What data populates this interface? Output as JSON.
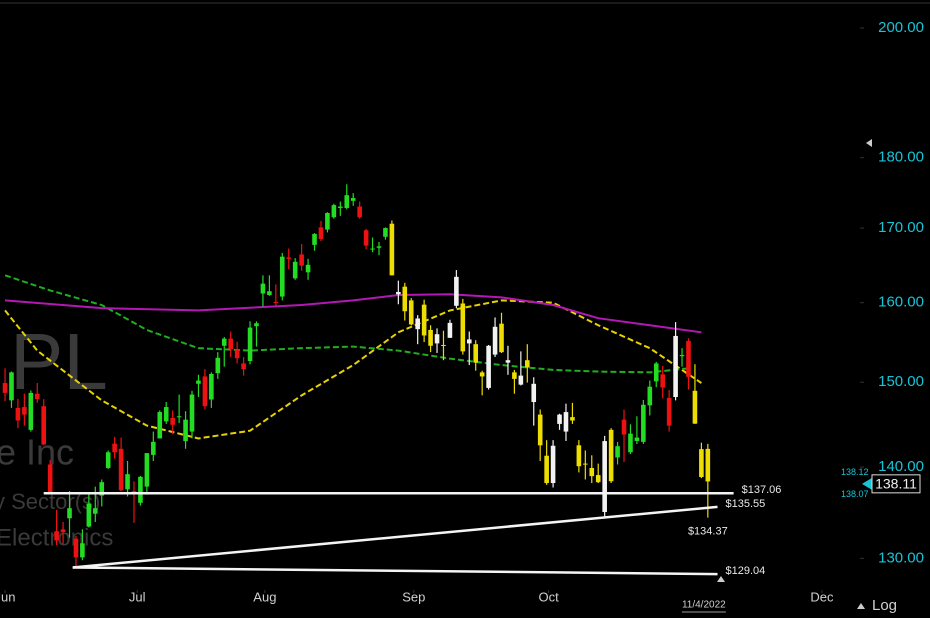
{
  "chart_data": {
    "type": "candlestick",
    "scale": "log",
    "grid": false,
    "watermark": [
      "PL",
      "e Inc",
      "y Sector(s)",
      "Electronics"
    ],
    "xlim": [
      -0.78,
      132.6
    ],
    "xticks": [
      {
        "value": 0,
        "label": "Jun"
      },
      {
        "value": 20.5,
        "label": "Jul"
      },
      {
        "value": 40.3,
        "label": "Aug"
      },
      {
        "value": 63.4,
        "label": "Sep"
      },
      {
        "value": 84.3,
        "label": "Oct"
      },
      {
        "value": 126.7,
        "label": "Dec"
      }
    ],
    "date_marker": {
      "value": 109,
      "label": "11/4/2022"
    },
    "ylim": [
      126.7,
      204.6
    ],
    "yticks": [
      {
        "value": 130,
        "label": "130.00"
      },
      {
        "value": 140,
        "label": "140.00"
      },
      {
        "value": 150,
        "label": "150.00"
      },
      {
        "value": 160,
        "label": "160.00"
      },
      {
        "value": 170,
        "label": "170.00"
      },
      {
        "value": 180,
        "label": "180.00"
      },
      {
        "value": 200,
        "label": "200.00"
      }
    ],
    "scale_label": "Log",
    "last_price": 138.11,
    "ask": 138.12,
    "bid": 138.07,
    "candles": {
      "open": [
        149.9,
        147.8,
        146.9,
        147.0,
        144.3,
        148.6,
        147.1,
        140.3,
        132.9,
        133.1,
        134.3,
        132.1,
        130.1,
        133.4,
        134.8,
        136.8,
        139.9,
        142.7,
        142.1,
        137.5,
        137.3,
        136.0,
        137.8,
        141.4,
        143.3,
        145.3,
        145.7,
        145.8,
        142.99,
        144.1,
        149.8,
        150.7,
        147.9,
        151.1,
        154.5,
        155.4,
        154.0,
        152.3,
        152.6,
        156.98,
        161.2,
        161.0,
        160.1,
        160.8,
        166.0,
        163.2,
        166.4,
        164.0,
        167.7,
        170.1,
        169.8,
        171.5,
        172.8,
        172.8,
        173.8,
        173.0,
        169.7,
        167.1,
        167.3,
        168.8,
        170.6,
        161.1,
        162.1,
        160.3,
        156.6,
        159.75,
        156.5,
        154.8,
        154.6,
        155.5,
        159.6,
        159.9,
        154.8,
        154.7,
        151.2,
        149.3,
        153.4,
        157.3,
        152.4,
        151.2,
        149.7,
        152.7,
        147.6,
        146.1,
        141.3,
        138.2,
        145.0,
        144.1,
        145.8,
        142.5,
        140.4,
        139.9,
        139.1,
        134.99,
        144.3,
        141.1,
        145.5,
        141.7,
        143.0,
        142.9,
        147.2,
        150.1,
        150.96,
        148.1,
        148.2,
        153.2,
        155.1,
        148.95,
        142.06,
        142.09
      ],
      "high": [
        151.7,
        151.3,
        147.97,
        148.6,
        149.0,
        149.9,
        147.95,
        140.8,
        135.2,
        133.9,
        137.3,
        132.4,
        133.1,
        137.1,
        137.8,
        138.6,
        141.9,
        143.5,
        143.4,
        140.7,
        138.4,
        139.0,
        141.6,
        144.1,
        146.6,
        147.6,
        146.6,
        148.5,
        146.5,
        148.95,
        150.9,
        151.6,
        151.2,
        153.7,
        155.6,
        156.3,
        155.0,
        153.1,
        157.6,
        157.6,
        163.6,
        163.6,
        162.4,
        166.6,
        167.2,
        165.9,
        167.8,
        165.8,
        169.3,
        170.99,
        172.2,
        173.4,
        173.7,
        176.15,
        174.9,
        173.7,
        169.9,
        168.7,
        168.1,
        170.1,
        171.05,
        162.9,
        162.6,
        160.6,
        158.4,
        160.4,
        157.1,
        156.7,
        156.4,
        157.8,
        164.3,
        160.5,
        156.3,
        155.2,
        151.4,
        154.6,
        158.1,
        158.7,
        154.5,
        151.5,
        153.8,
        154.7,
        150.6,
        146.7,
        143.1,
        143.1,
        146.2,
        147.4,
        147.5,
        143.1,
        141.9,
        141.35,
        140.4,
        143.6,
        144.5,
        142.9,
        146.7,
        144.95,
        145.9,
        147.85,
        150.2,
        152.5,
        151.99,
        149.05,
        157.5,
        154.2,
        155.45,
        152.2,
        142.8,
        142.67
      ],
      "low": [
        147.7,
        146.9,
        144.5,
        144.8,
        144.1,
        147.5,
        142.5,
        137.1,
        131.4,
        131.5,
        132.2,
        129.04,
        129.8,
        133.3,
        133.9,
        135.6,
        139.8,
        140.97,
        137.3,
        136.7,
        133.8,
        135.7,
        136.9,
        140.7,
        143.3,
        145.0,
        143.8,
        145.1,
        142.1,
        143.3,
        148.2,
        146.7,
        146.9,
        150.4,
        151.9,
        153.1,
        152.3,
        150.8,
        152.2,
        154.4,
        159.5,
        160.9,
        159.6,
        160.3,
        164.4,
        163.0,
        164.2,
        163.0,
        166.9,
        168.2,
        169.4,
        171.3,
        171.7,
        172.6,
        173.1,
        171.3,
        167.1,
        166.7,
        166.3,
        168.4,
        163.6,
        159.8,
        157.7,
        157.1,
        154.7,
        154.97,
        153.7,
        153.6,
        152.7,
        155.5,
        159.3,
        153.4,
        152.1,
        151.4,
        148.4,
        149.1,
        153.1,
        153.6,
        150.9,
        148.6,
        149.6,
        149.95,
        144.8,
        140.7,
        138.0,
        137.7,
        144.3,
        143.0,
        145.0,
        139.4,
        138.6,
        138.2,
        138.2,
        134.37,
        138.2,
        140.3,
        140.6,
        141.5,
        142.65,
        142.65,
        146.0,
        149.4,
        148.04,
        144.1,
        147.8,
        151.9,
        149.1,
        145.0,
        138.75,
        134.37
      ],
      "close": [
        148.7,
        151.2,
        145.4,
        146.1,
        148.7,
        147.96,
        142.6,
        137.1,
        131.9,
        132.8,
        135.4,
        130.1,
        131.6,
        135.9,
        135.4,
        138.3,
        141.7,
        141.7,
        137.4,
        139.2,
        137.0,
        138.9,
        141.6,
        142.9,
        146.4,
        147.0,
        144.9,
        145.9,
        145.5,
        148.5,
        150.2,
        147.1,
        151.0,
        153.0,
        155.4,
        154.1,
        152.95,
        151.6,
        156.8,
        157.35,
        162.5,
        161.5,
        160.0,
        166.1,
        165.8,
        165.4,
        164.9,
        165.0,
        169.2,
        168.5,
        172.1,
        173.2,
        173.0,
        174.6,
        174.2,
        171.5,
        167.6,
        167.2,
        167.5,
        170.0,
        163.6,
        161.4,
        158.9,
        157.2,
        157.96,
        155.8,
        154.5,
        155.96,
        154.5,
        157.4,
        163.4,
        153.8,
        155.3,
        152.4,
        150.7,
        154.5,
        156.9,
        153.7,
        152.7,
        150.4,
        150.8,
        151.8,
        149.8,
        142.5,
        138.2,
        142.45,
        146.1,
        146.4,
        145.4,
        140.1,
        140.4,
        138.98,
        138.3,
        142.99,
        138.4,
        142.4,
        143.75,
        143.86,
        143.4,
        147.27,
        149.45,
        152.3,
        149.35,
        144.8,
        155.74,
        153.34,
        150.65,
        145.03,
        138.88,
        138.38
      ],
      "colors": [
        "#ee1111",
        "#22dd22",
        "#ee1111",
        "#ee1111",
        "#22dd22",
        "#ee1111",
        "#ee1111",
        "#ee1111",
        "#ee1111",
        "#ee1111",
        "#22dd22",
        "#ee1111",
        "#22dd22",
        "#22dd22",
        "#22dd22",
        "#22dd22",
        "#22dd22",
        "#ee1111",
        "#ee1111",
        "#22dd22",
        "#ee1111",
        "#22dd22",
        "#22dd22",
        "#22dd22",
        "#22dd22",
        "#22dd22",
        "#ee1111",
        "#22dd22",
        "#22dd22",
        "#22dd22",
        "#22dd22",
        "#ee1111",
        "#22dd22",
        "#22dd22",
        "#22dd22",
        "#ee1111",
        "#ee1111",
        "#ee1111",
        "#22dd22",
        "#22dd22",
        "#22dd22",
        "#22dd22",
        "#ee1111",
        "#22dd22",
        "#ee1111",
        "#22dd22",
        "#ee1111",
        "#22dd22",
        "#22dd22",
        "#ee1111",
        "#22dd22",
        "#22dd22",
        "#22dd22",
        "#22dd22",
        "#22dd22",
        "#ee1111",
        "#ee1111",
        "#22dd22",
        "#22dd22",
        "#22dd22",
        "#eedd00",
        "#f2f2f2",
        "#eedd00",
        "#eedd00",
        "#f2f2f2",
        "#eedd00",
        "#eedd00",
        "#f2f2f2",
        "#eedd00",
        "#f2f2f2",
        "#f2f2f2",
        "#eedd00",
        "#f2f2f2",
        "#eedd00",
        "#eedd00",
        "#f2f2f2",
        "#f2f2f2",
        "#eedd00",
        "#f2f2f2",
        "#eedd00",
        "#f2f2f2",
        "#eedd00",
        "#f2f2f2",
        "#eedd00",
        "#eedd00",
        "#f2f2f2",
        "#f2f2f2",
        "#f2f2f2",
        "#eedd00",
        "#eedd00",
        "#eedd00",
        "#eedd00",
        "#eedd00",
        "#f2f2f2",
        "#eedd00",
        "#22dd22",
        "#ee1111",
        "#22dd22",
        "#22dd22",
        "#22dd22",
        "#22dd22",
        "#22dd22",
        "#ee1111",
        "#ee1111",
        "#f2f2f2",
        "#22dd22",
        "#ee1111",
        "#eedd00",
        "#eedd00",
        "#eedd00"
      ]
    },
    "lines": [
      {
        "color": "#e6d200",
        "dashed": true,
        "x": [
          0,
          5,
          15,
          22,
          30,
          38,
          46,
          54,
          61,
          69,
          77,
          85,
          92,
          100,
          108
        ],
        "values": [
          159.0,
          153.9,
          147.8,
          144.8,
          143.3,
          144.2,
          148.4,
          152.1,
          156.2,
          159.0,
          160.3,
          160.0,
          157.1,
          154.2,
          149.9
        ]
      },
      {
        "color": "#1fae1f",
        "dashed": true,
        "x": [
          0,
          7,
          15,
          22,
          30,
          38,
          46,
          54,
          61,
          69,
          77,
          85,
          92,
          100,
          106
        ],
        "values": [
          163.6,
          161.6,
          159.7,
          156.5,
          154.2,
          153.9,
          154.2,
          154.4,
          153.9,
          152.9,
          152.1,
          151.5,
          151.3,
          151.2,
          151.7
        ]
      },
      {
        "color": "#b418b4",
        "dashed": false,
        "x": [
          0,
          15,
          30,
          46,
          54,
          61,
          69,
          77,
          85,
          92,
          100,
          108
        ],
        "values": [
          160.3,
          159.3,
          159.0,
          159.7,
          160.3,
          161.0,
          161.1,
          160.7,
          159.7,
          158.0,
          157.1,
          156.2
        ]
      }
    ],
    "trendlines": [
      {
        "label": "$137.06",
        "x": [
          6,
          113
        ],
        "values": [
          137.06,
          137.06
        ]
      },
      {
        "label": "$135.55",
        "x": [
          10.5,
          110.5
        ],
        "values": [
          129.04,
          135.55
        ]
      },
      {
        "label": "$129.04",
        "x": [
          10.5,
          110.5
        ],
        "values": [
          129.04,
          128.35
        ]
      }
    ],
    "annotation": {
      "label": "$134.37",
      "x": 109,
      "value": 134.37
    }
  }
}
